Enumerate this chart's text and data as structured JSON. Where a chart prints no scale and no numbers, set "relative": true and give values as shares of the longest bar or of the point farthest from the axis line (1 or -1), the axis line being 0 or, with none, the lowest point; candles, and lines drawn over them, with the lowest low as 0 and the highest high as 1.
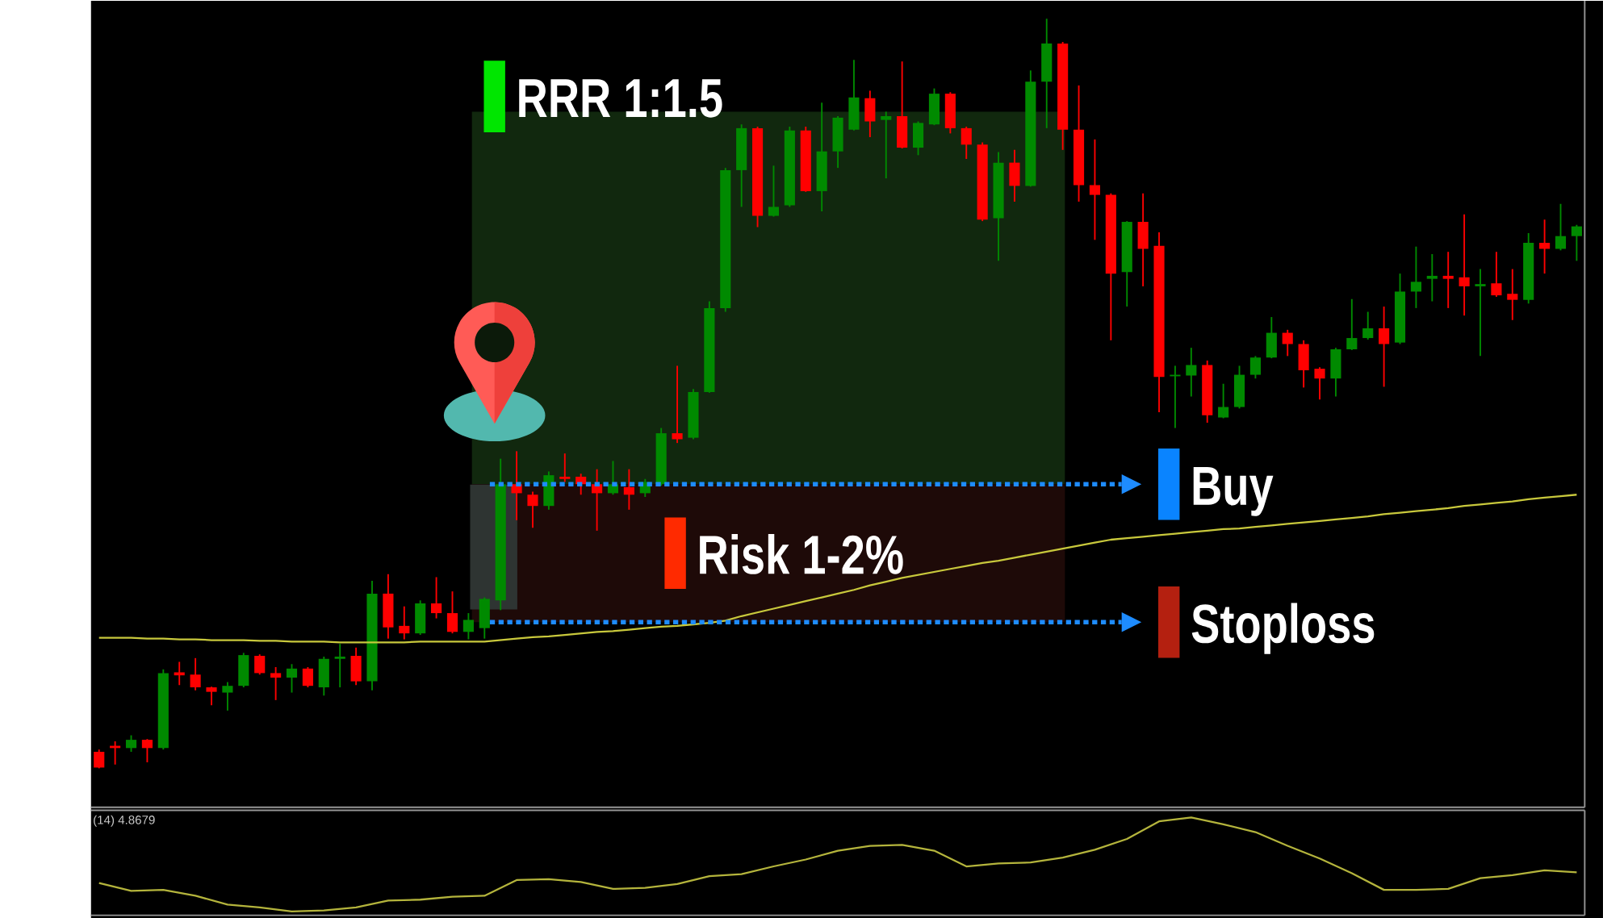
{
  "chart_data": [
    {
      "type": "candlestick",
      "relative": true,
      "categories": [
        null,
        null,
        null,
        null,
        null,
        null,
        null,
        null,
        null,
        null,
        null,
        null,
        null,
        null,
        null,
        null,
        null,
        null,
        null,
        null,
        null,
        null,
        null,
        null,
        null,
        null,
        null,
        null,
        null,
        null,
        null,
        null,
        null,
        null,
        null,
        null,
        null,
        null,
        null,
        null,
        null,
        null,
        null,
        null,
        null,
        null,
        null,
        null,
        null,
        null,
        null,
        null,
        null,
        null,
        null,
        null,
        null,
        null,
        null,
        null,
        null,
        null,
        null,
        null,
        null,
        null,
        null,
        null,
        null,
        null,
        null,
        null,
        null,
        null,
        null,
        null,
        null,
        null,
        null,
        null,
        null,
        null,
        null,
        null,
        null,
        null,
        null,
        null,
        null,
        null,
        null,
        null,
        null
      ],
      "ohlc": [
        [
          0.022,
          0.025,
          0,
          0.001
        ],
        [
          0.03,
          0.036,
          0.005,
          0.027
        ],
        [
          0.027,
          0.044,
          0.022,
          0.038
        ],
        [
          0.038,
          0.039,
          0.008,
          0.027
        ],
        [
          0.027,
          0.132,
          0.025,
          0.127
        ],
        [
          0.128,
          0.142,
          0.111,
          0.124
        ],
        [
          0.125,
          0.147,
          0.104,
          0.108
        ],
        [
          0.108,
          0.109,
          0.084,
          0.102
        ],
        [
          0.101,
          0.115,
          0.077,
          0.11
        ],
        [
          0.11,
          0.154,
          0.108,
          0.151
        ],
        [
          0.15,
          0.152,
          0.125,
          0.127
        ],
        [
          0.127,
          0.135,
          0.091,
          0.121
        ],
        [
          0.121,
          0.139,
          0.101,
          0.133
        ],
        [
          0.133,
          0.135,
          0.108,
          0.11
        ],
        [
          0.108,
          0.149,
          0.097,
          0.146
        ],
        [
          0.146,
          0.166,
          0.108,
          0.149
        ],
        [
          0.15,
          0.161,
          0.111,
          0.116
        ],
        [
          0.116,
          0.25,
          0.104,
          0.233
        ],
        [
          0.233,
          0.259,
          0.173,
          0.188
        ],
        [
          0.19,
          0.216,
          0.172,
          0.18
        ],
        [
          0.18,
          0.224,
          0.178,
          0.22
        ],
        [
          0.22,
          0.255,
          0.2,
          0.207
        ],
        [
          0.207,
          0.236,
          0.18,
          0.182
        ],
        [
          0.182,
          0.207,
          0.172,
          0.198
        ],
        [
          0.187,
          0.228,
          0.173,
          0.226
        ],
        [
          0.224,
          0.413,
          0.211,
          0.379
        ],
        [
          0.379,
          0.423,
          0.331,
          0.367
        ],
        [
          0.365,
          0.369,
          0.321,
          0.35
        ],
        [
          0.35,
          0.396,
          0.345,
          0.391
        ],
        [
          0.389,
          0.42,
          0.382,
          0.386
        ],
        [
          0.389,
          0.393,
          0.365,
          0.379
        ],
        [
          0.379,
          0.399,
          0.317,
          0.367
        ],
        [
          0.367,
          0.41,
          0.365,
          0.379
        ],
        [
          0.375,
          0.399,
          0.345,
          0.365
        ],
        [
          0.367,
          0.386,
          0.362,
          0.382
        ],
        [
          0.379,
          0.454,
          0.377,
          0.447
        ],
        [
          0.447,
          0.537,
          0.434,
          0.439
        ],
        [
          0.441,
          0.506,
          0.439,
          0.502
        ],
        [
          0.502,
          0.623,
          0.501,
          0.614
        ],
        [
          0.614,
          0.801,
          0.609,
          0.798
        ],
        [
          0.798,
          0.859,
          0.749,
          0.854
        ],
        [
          0.854,
          0.856,
          0.722,
          0.737
        ],
        [
          0.737,
          0.804,
          0.736,
          0.749
        ],
        [
          0.751,
          0.856,
          0.749,
          0.851
        ],
        [
          0.851,
          0.856,
          0.769,
          0.77
        ],
        [
          0.77,
          0.888,
          0.743,
          0.823
        ],
        [
          0.823,
          0.87,
          0.801,
          0.868
        ],
        [
          0.852,
          0.945,
          0.851,
          0.895
        ],
        [
          0.894,
          0.904,
          0.842,
          0.863
        ],
        [
          0.865,
          0.876,
          0.787,
          0.87
        ],
        [
          0.87,
          0.943,
          0.827,
          0.828
        ],
        [
          0.828,
          0.863,
          0.818,
          0.861
        ],
        [
          0.859,
          0.907,
          0.858,
          0.9
        ],
        [
          0.9,
          0.902,
          0.847,
          0.854
        ],
        [
          0.854,
          0.856,
          0.813,
          0.832
        ],
        [
          0.832,
          0.835,
          0.73,
          0.732
        ],
        [
          0.734,
          0.822,
          0.677,
          0.808
        ],
        [
          0.808,
          0.825,
          0.756,
          0.777
        ],
        [
          0.777,
          0.931,
          0.776,
          0.916
        ],
        [
          0.916,
          1,
          0.854,
          0.967
        ],
        [
          0.967,
          0.969,
          0.825,
          0.852
        ],
        [
          0.852,
          0.911,
          0.756,
          0.778
        ],
        [
          0.778,
          0.839,
          0.705,
          0.765
        ],
        [
          0.765,
          0.767,
          0.571,
          0.66
        ],
        [
          0.662,
          0.73,
          0.616,
          0.729
        ],
        [
          0.729,
          0.767,
          0.643,
          0.693
        ],
        [
          0.697,
          0.715,
          0.475,
          0.522
        ],
        [
          0.523,
          0.537,
          0.454,
          0.525
        ],
        [
          0.524,
          0.561,
          0.496,
          0.538
        ],
        [
          0.538,
          0.544,
          0.461,
          0.471
        ],
        [
          0.468,
          0.513,
          0.467,
          0.482
        ],
        [
          0.482,
          0.537,
          0.48,
          0.525
        ],
        [
          0.525,
          0.55,
          0.52,
          0.548
        ],
        [
          0.548,
          0.602,
          0.547,
          0.581
        ],
        [
          0.581,
          0.585,
          0.55,
          0.566
        ],
        [
          0.566,
          0.571,
          0.508,
          0.531
        ],
        [
          0.533,
          0.535,
          0.492,
          0.52
        ],
        [
          0.52,
          0.561,
          0.496,
          0.559
        ],
        [
          0.559,
          0.626,
          0.558,
          0.574
        ],
        [
          0.574,
          0.609,
          0.572,
          0.587
        ],
        [
          0.587,
          0.616,
          0.509,
          0.566
        ],
        [
          0.568,
          0.66,
          0.566,
          0.636
        ],
        [
          0.636,
          0.696,
          0.614,
          0.649
        ],
        [
          0.653,
          0.686,
          0.623,
          0.657
        ],
        [
          0.657,
          0.689,
          0.614,
          0.653
        ],
        [
          0.655,
          0.739,
          0.604,
          0.643
        ],
        [
          0.643,
          0.666,
          0.55,
          0.646
        ],
        [
          0.647,
          0.689,
          0.629,
          0.631
        ],
        [
          0.633,
          0.666,
          0.598,
          0.625
        ],
        [
          0.625,
          0.714,
          0.62,
          0.701
        ],
        [
          0.701,
          0.732,
          0.66,
          0.693
        ],
        [
          0.693,
          0.753,
          0.691,
          0.71
        ],
        [
          0.71,
          0.725,
          0.677,
          0.723
        ]
      ],
      "colors": [
        "#ff0000",
        "#ff0000",
        "#008a00",
        "#ff0000",
        "#008a00",
        "#ff0000",
        "#ff0000",
        "#ff0000",
        "#008a00",
        "#008a00",
        "#ff0000",
        "#ff0000",
        "#008a00",
        "#ff0000",
        "#008a00",
        "#008a00",
        "#ff0000",
        "#008a00",
        "#ff0000",
        "#ff0000",
        "#008a00",
        "#ff0000",
        "#ff0000",
        "#008a00",
        "#008a00",
        "#008a00",
        "#ff0000",
        "#ff0000",
        "#008a00",
        "#ff0000",
        "#ff0000",
        "#ff0000",
        "#008a00",
        "#ff0000",
        "#008a00",
        "#008a00",
        "#ff0000",
        "#008a00",
        "#008a00",
        "#008a00",
        "#008a00",
        "#ff0000",
        "#008a00",
        "#008a00",
        "#ff0000",
        "#008a00",
        "#008a00",
        "#008a00",
        "#ff0000",
        "#008a00",
        "#ff0000",
        "#008a00",
        "#008a00",
        "#ff0000",
        "#ff0000",
        "#ff0000",
        "#008a00",
        "#ff0000",
        "#008a00",
        "#008a00",
        "#ff0000",
        "#ff0000",
        "#ff0000",
        "#ff0000",
        "#008a00",
        "#ff0000",
        "#ff0000",
        "#008a00",
        "#008a00",
        "#ff0000",
        "#008a00",
        "#008a00",
        "#008a00",
        "#008a00",
        "#ff0000",
        "#ff0000",
        "#ff0000",
        "#008a00",
        "#008a00",
        "#008a00",
        "#ff0000",
        "#008a00",
        "#008a00",
        "#008a00",
        "#ff0000",
        "#ff0000",
        "#008a00",
        "#ff0000",
        "#ff0000",
        "#008a00",
        "#ff0000",
        "#008a00",
        "#008a00"
      ],
      "series": [
        {
          "type": "line",
          "color": "#c8c83c",
          "values": [
            0.174,
            0.174,
            0.174,
            0.173,
            0.173,
            0.172,
            0.172,
            0.171,
            0.171,
            0.171,
            0.17,
            0.17,
            0.169,
            0.169,
            0.169,
            0.168,
            0.168,
            0.168,
            0.168,
            0.168,
            0.169,
            0.169,
            0.169,
            0.169,
            0.169,
            0.171,
            0.173,
            0.175,
            0.176,
            0.178,
            0.18,
            0.182,
            0.183,
            0.185,
            0.187,
            0.189,
            0.19,
            0.192,
            0.194,
            0.197,
            0.203,
            0.208,
            0.213,
            0.218,
            0.223,
            0.228,
            0.233,
            0.238,
            0.244,
            0.249,
            0.254,
            0.258,
            0.262,
            0.266,
            0.27,
            0.274,
            0.277,
            0.281,
            0.285,
            0.289,
            0.293,
            0.297,
            0.301,
            0.305,
            0.307,
            0.309,
            0.311,
            0.313,
            0.315,
            0.317,
            0.319,
            0.32,
            0.322,
            0.324,
            0.326,
            0.328,
            0.33,
            0.332,
            0.334,
            0.336,
            0.339,
            0.341,
            0.343,
            0.345,
            0.347,
            0.35,
            0.352,
            0.354,
            0.356,
            0.359,
            0.361,
            0.363,
            0.365
          ]
        }
      ],
      "bands": [
        {
          "axis": "y",
          "from": 0.379,
          "to": 0.876,
          "label": "RRR 1:1.5",
          "color": "#11280e"
        },
        {
          "axis": "y",
          "from": 0.195,
          "to": 0.379,
          "label": "Risk 1-2%",
          "color": "#1e0a08"
        }
      ],
      "ref_lines": [
        {
          "axis": "y",
          "value": 0.379,
          "label": "Buy",
          "color": "#1e8cff",
          "line_style": "dotted"
        },
        {
          "axis": "y",
          "value": 0.195,
          "label": "Stoploss",
          "color": "#1e8cff",
          "line_style": "dotted"
        }
      ]
    },
    {
      "type": "line",
      "relative": true,
      "categories": [
        null,
        null,
        null,
        null,
        null,
        null,
        null,
        null,
        null,
        null,
        null,
        null,
        null,
        null,
        null,
        null,
        null,
        null,
        null,
        null,
        null,
        null,
        null,
        null,
        null,
        null,
        null,
        null,
        null,
        null,
        null,
        null,
        null,
        null,
        null,
        null,
        null,
        null,
        null,
        null,
        null,
        null,
        null,
        null,
        null,
        null,
        null
      ],
      "series": [
        {
          "color": "#b4b43c",
          "values": [
            0.33,
            0.25,
            0.26,
            0.2,
            0.11,
            0.08,
            0.04,
            0.05,
            0.08,
            0.15,
            0.16,
            0.19,
            0.2,
            0.36,
            0.37,
            0.34,
            0.27,
            0.28,
            0.32,
            0.4,
            0.42,
            0.5,
            0.57,
            0.66,
            0.71,
            0.72,
            0.66,
            0.5,
            0.53,
            0.54,
            0.59,
            0.67,
            0.78,
            0.96,
            1,
            0.93,
            0.85,
            0.71,
            0.58,
            0.43,
            0.26,
            0.26,
            0.27,
            0.38,
            0.41,
            0.46,
            0.44
          ]
        }
      ],
      "annotations": [
        "(14) 4.8679"
      ]
    }
  ]
}
